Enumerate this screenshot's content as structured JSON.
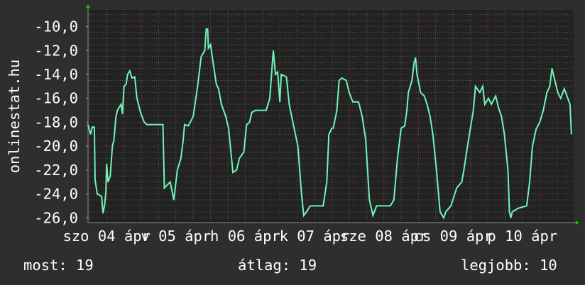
{
  "chart_data": {
    "type": "line",
    "ylabel": "onlinestat.hu",
    "ylim": [
      -26.4,
      -8.6
    ],
    "yticks": [
      "-10,0",
      "-12,0",
      "-14,0",
      "-16,0",
      "-18,0",
      "-20,0",
      "-22,0",
      "-24,0",
      "-26,0"
    ],
    "ytick_values": [
      -10,
      -12,
      -14,
      -16,
      -18,
      -20,
      -22,
      -24,
      -26
    ],
    "xlim": [
      "04-04 05:30",
      "04-11 05:45"
    ],
    "xticks": [
      {
        "label": "szo 04 ápr",
        "at": "04-04 12:00"
      },
      {
        "label": "v 05 ápr",
        "at": "04-05 12:00"
      },
      {
        "label": "h 06 ápr",
        "at": "04-06 12:00"
      },
      {
        "label": "k 07 ápr",
        "at": "04-07 12:00"
      },
      {
        "label": "sze 08 ápr",
        "at": "04-08 12:00"
      },
      {
        "label": "cs 09 ápr",
        "at": "04-09 12:00"
      },
      {
        "label": "p 10 ápr",
        "at": "04-10 12:00"
      }
    ],
    "grid": true,
    "colors": {
      "line": "#6ff5b6",
      "background": "#2e2e2e",
      "plot": "#222222",
      "major_grid": "#8a3a3a",
      "minor_grid": "#5a5a5a",
      "arrow": "#00cc00"
    },
    "points": [
      [
        "04-04 05:30",
        -18.2
      ],
      [
        "04-04 06:30",
        -19
      ],
      [
        "04-04 07:00",
        -18.4
      ],
      [
        "04-04 07:45",
        -18.4
      ],
      [
        "04-04 08:00",
        -22.8
      ],
      [
        "04-04 08:45",
        -24
      ],
      [
        "04-04 10:15",
        -24.2
      ],
      [
        "04-04 10:45",
        -25.6
      ],
      [
        "04-04 11:15",
        -25
      ],
      [
        "04-04 11:45",
        -23.8
      ],
      [
        "04-04 12:00",
        -21.5
      ],
      [
        "04-04 12:30",
        -23
      ],
      [
        "04-04 13:15",
        -22.5
      ],
      [
        "04-04 14:00",
        -20
      ],
      [
        "04-04 14:30",
        -19.5
      ],
      [
        "04-04 15:15",
        -17.5
      ],
      [
        "04-04 15:45",
        -17
      ],
      [
        "04-04 17:00",
        -16.5
      ],
      [
        "04-04 17:30",
        -17.3
      ],
      [
        "04-04 18:00",
        -15
      ],
      [
        "04-04 18:45",
        -14.8
      ],
      [
        "04-04 19:15",
        -14
      ],
      [
        "04-04 20:00",
        -13.7
      ],
      [
        "04-04 20:45",
        -14.3
      ],
      [
        "04-04 21:45",
        -14.2
      ],
      [
        "04-04 22:30",
        -16
      ],
      [
        "04-04 23:45",
        -17.2
      ],
      [
        "04-05 01:00",
        -18
      ],
      [
        "04-05 02:00",
        -18.2
      ],
      [
        "04-05 07:30",
        -18.2
      ],
      [
        "04-05 08:00",
        -23.5
      ],
      [
        "04-05 10:00",
        -23
      ],
      [
        "04-05 11:15",
        -24.5
      ],
      [
        "04-05 12:30",
        -22
      ],
      [
        "04-05 13:45",
        -21
      ],
      [
        "04-05 14:30",
        -19.5
      ],
      [
        "04-05 15:00",
        -18.2
      ],
      [
        "04-05 16:15",
        -18.3
      ],
      [
        "04-05 17:00",
        -18
      ],
      [
        "04-05 18:00",
        -17.5
      ],
      [
        "04-05 19:30",
        -15
      ],
      [
        "04-05 20:45",
        -12.5
      ],
      [
        "04-05 22:00",
        -12
      ],
      [
        "04-05 22:30",
        -10.2
      ],
      [
        "04-05 23:00",
        -10.2
      ],
      [
        "04-05 23:15",
        -11.8
      ],
      [
        "04-06 00:00",
        -11.5
      ],
      [
        "04-06 00:45",
        -12.8
      ],
      [
        "04-06 02:00",
        -14.8
      ],
      [
        "04-06 02:45",
        -15.2
      ],
      [
        "04-06 03:45",
        -16.5
      ],
      [
        "04-06 05:15",
        -17.5
      ],
      [
        "04-06 06:15",
        -18.5
      ],
      [
        "04-06 07:45",
        -22.2
      ],
      [
        "04-06 09:00",
        -22
      ],
      [
        "04-06 10:00",
        -21
      ],
      [
        "04-06 11:30",
        -20.5
      ],
      [
        "04-06 12:30",
        -18.2
      ],
      [
        "04-06 13:30",
        -18
      ],
      [
        "04-06 14:15",
        -17.2
      ],
      [
        "04-06 15:30",
        -17
      ],
      [
        "04-06 19:15",
        -17
      ],
      [
        "04-06 20:30",
        -16
      ],
      [
        "04-06 21:45",
        -12
      ],
      [
        "04-06 22:30",
        -14
      ],
      [
        "04-06 23:15",
        -13.8
      ],
      [
        "04-07 00:00",
        -16.3
      ],
      [
        "04-07 00:30",
        -14
      ],
      [
        "04-07 02:15",
        -14.2
      ],
      [
        "04-07 03:15",
        -16.5
      ],
      [
        "04-07 04:30",
        -18
      ],
      [
        "04-07 06:15",
        -20
      ],
      [
        "04-07 07:30",
        -24
      ],
      [
        "04-07 08:15",
        -25.8
      ],
      [
        "04-07 09:15",
        -25.5
      ],
      [
        "04-07 10:30",
        -25
      ],
      [
        "04-07 15:00",
        -25
      ],
      [
        "04-07 16:15",
        -23
      ],
      [
        "04-07 17:00",
        -19
      ],
      [
        "04-07 18:00",
        -18.5
      ],
      [
        "04-07 18:30",
        -18.5
      ],
      [
        "04-07 19:45",
        -17
      ],
      [
        "04-07 20:30",
        -14.5
      ],
      [
        "04-07 21:30",
        -14.3
      ],
      [
        "04-07 23:00",
        -14.5
      ],
      [
        "04-08 00:00",
        -15.5
      ],
      [
        "04-08 01:15",
        -16.3
      ],
      [
        "04-08 03:15",
        -16.3
      ],
      [
        "04-08 04:30",
        -17.5
      ],
      [
        "04-08 05:45",
        -19.5
      ],
      [
        "04-08 07:00",
        -24.5
      ],
      [
        "04-08 08:15",
        -25.8
      ],
      [
        "04-08 09:30",
        -25
      ],
      [
        "04-08 14:15",
        -25
      ],
      [
        "04-08 15:30",
        -24.5
      ],
      [
        "04-08 16:45",
        -21
      ],
      [
        "04-08 18:00",
        -18.5
      ],
      [
        "04-08 19:15",
        -18.3
      ],
      [
        "04-08 20:00",
        -17
      ],
      [
        "04-08 20:30",
        -15.5
      ],
      [
        "04-08 21:45",
        -14.5
      ],
      [
        "04-08 22:30",
        -13
      ],
      [
        "04-08 23:00",
        -12.6
      ],
      [
        "04-08 23:30",
        -14
      ],
      [
        "04-09 00:45",
        -15.5
      ],
      [
        "04-09 02:00",
        -15.8
      ],
      [
        "04-09 03:00",
        -16.5
      ],
      [
        "04-09 04:00",
        -17.5
      ],
      [
        "04-09 05:00",
        -19
      ],
      [
        "04-09 06:15",
        -22
      ],
      [
        "04-09 07:30",
        -25.5
      ],
      [
        "04-09 08:45",
        -26
      ],
      [
        "04-09 09:30",
        -25.5
      ],
      [
        "04-09 11:15",
        -25
      ],
      [
        "04-09 13:15",
        -23.5
      ],
      [
        "04-09 15:00",
        -23
      ],
      [
        "04-09 15:45",
        -22
      ],
      [
        "04-09 17:00",
        -20
      ],
      [
        "04-09 18:00",
        -18.5
      ],
      [
        "04-09 19:00",
        -17
      ],
      [
        "04-09 19:45",
        -15
      ],
      [
        "04-09 21:15",
        -15.5
      ],
      [
        "04-09 22:15",
        -15
      ],
      [
        "04-09 23:00",
        -16.5
      ],
      [
        "04-10 00:15",
        -16
      ],
      [
        "04-10 01:15",
        -16.5
      ],
      [
        "04-10 02:45",
        -15.8
      ],
      [
        "04-10 03:45",
        -16.8
      ],
      [
        "04-10 04:45",
        -17.5
      ],
      [
        "04-10 05:45",
        -19
      ],
      [
        "04-10 07:00",
        -22
      ],
      [
        "04-10 07:30",
        -25.5
      ],
      [
        "04-10 08:00",
        -26
      ],
      [
        "04-10 08:30",
        -25.5
      ],
      [
        "04-10 10:30",
        -25.2
      ],
      [
        "04-10 13:30",
        -25
      ],
      [
        "04-10 14:30",
        -23
      ],
      [
        "04-10 15:30",
        -20
      ],
      [
        "04-10 16:45",
        -18.6
      ],
      [
        "04-10 18:00",
        -18
      ],
      [
        "04-10 19:15",
        -17
      ],
      [
        "04-10 20:30",
        -15.5
      ],
      [
        "04-10 21:30",
        -15
      ],
      [
        "04-10 22:15",
        -13.5
      ],
      [
        "04-10 23:15",
        -14.5
      ],
      [
        "04-11 00:15",
        -15.5
      ],
      [
        "04-11 01:15",
        -16
      ],
      [
        "04-11 02:30",
        -15.2
      ],
      [
        "04-11 03:45",
        -16
      ],
      [
        "04-11 04:30",
        -16.5
      ],
      [
        "04-11 05:00",
        -19
      ]
    ]
  },
  "legend": {
    "most": "most: 19",
    "atlag": "átlag: 19",
    "legjobb": "legjobb: 10"
  }
}
